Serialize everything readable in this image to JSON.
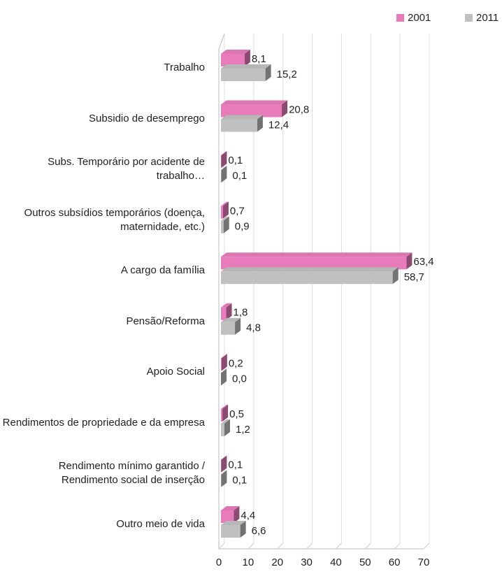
{
  "chart_data": {
    "type": "bar",
    "orientation": "horizontal",
    "categories": [
      "Trabalho",
      "Subsidio de desemprego",
      "Subs. Temporário por acidente de trabalho…",
      "Outros subsídios temporários (doença, maternidade, etc.)",
      "A cargo da família",
      "Pensão/Reforma",
      "Apoio Social",
      "Rendimentos de propriedade e da empresa",
      "Rendimento mínimo garantido / Rendimento social de inserção",
      "Outro meio de vida"
    ],
    "series": [
      {
        "name": "2001",
        "color": "#e87cbb",
        "values": [
          8.1,
          20.8,
          0.1,
          0.7,
          63.4,
          1.8,
          0.2,
          0.5,
          0.1,
          4.4
        ],
        "value_labels": [
          "8,1",
          "20,8",
          "0,1",
          "0,7",
          "63,4",
          "1,8",
          "0,2",
          "0,5",
          "0,1",
          "4,4"
        ]
      },
      {
        "name": "2011",
        "color": "#c0c0c0",
        "values": [
          15.2,
          12.4,
          0.1,
          0.9,
          58.7,
          4.8,
          0.0,
          1.2,
          0.1,
          6.6
        ],
        "value_labels": [
          "15,2",
          "12,4",
          "0,1",
          "0,9",
          "58,7",
          "4,8",
          "0,0",
          "1,2",
          "0,1",
          "6,6"
        ]
      }
    ],
    "xlim": [
      0,
      70
    ],
    "xticks": [
      0,
      10,
      20,
      30,
      40,
      50,
      60,
      70
    ],
    "grid": true,
    "legend": "top-right"
  }
}
